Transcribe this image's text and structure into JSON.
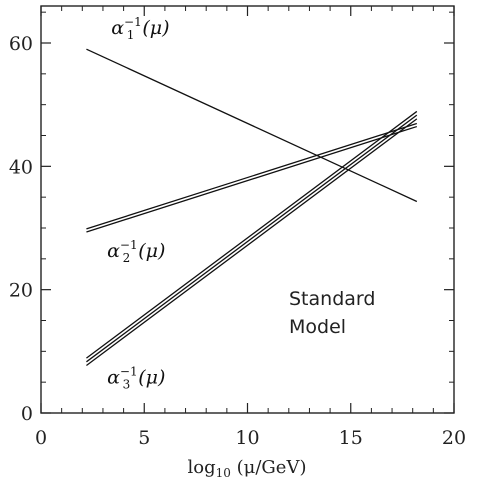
{
  "chart_data": {
    "type": "line",
    "xlabel": "log₁₀ (μ/GeV)",
    "xlabel_parts": {
      "pre": "log",
      "sub": "10",
      "post": " (μ/GeV)"
    },
    "ylabel": "",
    "xlim": [
      0,
      20
    ],
    "ylim": [
      0,
      66
    ],
    "xticks": [
      0,
      5,
      10,
      15,
      20
    ],
    "yticks": [
      0,
      20,
      40,
      60
    ],
    "x_minor_step": 1,
    "y_minor_step": 5,
    "grid": false,
    "annotation": [
      "Standard",
      "Model"
    ],
    "series": [
      {
        "name": "α1⁻¹(μ)",
        "label_parts": {
          "base": "α",
          "sub": "1",
          "sup": "−1",
          "arg": "(μ)"
        },
        "label_anchor": {
          "x": 3.4,
          "y": 61.5
        },
        "x": [
          2.2,
          18.2
        ],
        "y": [
          59.0,
          34.3
        ],
        "band": [
          0
        ],
        "color": "#111111"
      },
      {
        "name": "α2⁻¹(μ)",
        "label_parts": {
          "base": "α",
          "sub": "2",
          "sup": "−1",
          "arg": "(μ)"
        },
        "label_anchor": {
          "x": 3.2,
          "y": 25.3
        },
        "x": [
          2.2,
          18.2
        ],
        "y": [
          29.6,
          46.7
        ],
        "band": [
          -0.25,
          0.25
        ],
        "color": "#111111"
      },
      {
        "name": "α3⁻¹(μ)",
        "label_parts": {
          "base": "α",
          "sub": "3",
          "sup": "−1",
          "arg": "(μ)"
        },
        "label_anchor": {
          "x": 3.2,
          "y": 4.8
        },
        "x": [
          2.2,
          18.2
        ],
        "y": [
          8.3,
          48.3
        ],
        "band": [
          -0.6,
          0,
          0.6
        ],
        "color": "#111111"
      }
    ]
  }
}
